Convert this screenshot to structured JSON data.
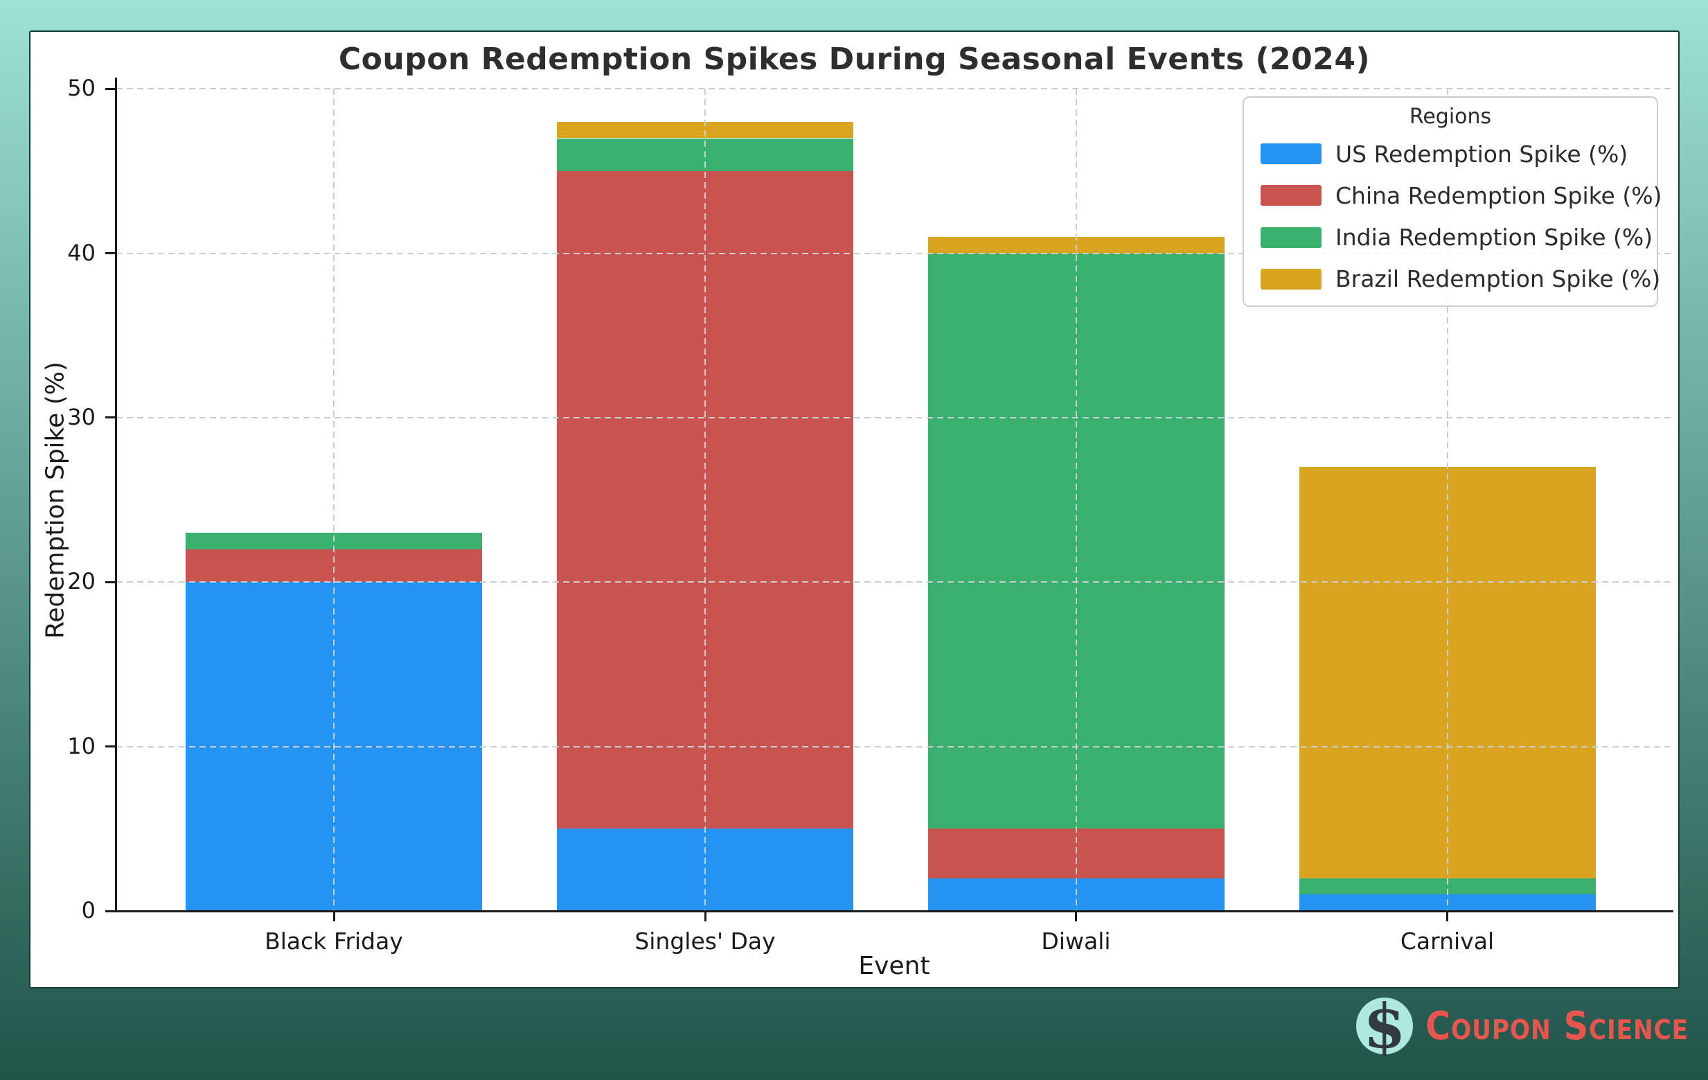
{
  "page": {
    "gradient_top": "#9de2d4",
    "gradient_bottom": "#1f5449"
  },
  "chart_data": {
    "type": "bar",
    "stacked": true,
    "title": "Coupon Redemption Spikes During Seasonal Events (2024)",
    "xlabel": "Event",
    "ylabel": "Redemption Spike (%)",
    "categories": [
      "Black Friday",
      "Singles' Day",
      "Diwali",
      "Carnival"
    ],
    "series": [
      {
        "name": "US Redemption Spike (%)",
        "color": "#2493f2",
        "values": [
          20,
          5,
          2,
          1
        ]
      },
      {
        "name": "China Redemption Spike (%)",
        "color": "#c9534f",
        "values": [
          2,
          40,
          3,
          0
        ]
      },
      {
        "name": "India Redemption Spike (%)",
        "color": "#3ab06e",
        "values": [
          1,
          2,
          35,
          1
        ]
      },
      {
        "name": "Brazil Redemption Spike (%)",
        "color": "#d9a520",
        "values": [
          0,
          1,
          1,
          25
        ]
      }
    ],
    "ylim": [
      0,
      50
    ],
    "yticks": [
      0,
      10,
      20,
      30,
      40,
      50
    ],
    "grid": "dashed-both-axes",
    "legend": {
      "title": "Regions",
      "position": "upper right"
    }
  },
  "branding": {
    "logo_icon": "dollar-sign-icon",
    "dollar_symbol": "$",
    "logo_text": "Coupon Science",
    "text_color": "#e9544c",
    "circle_color": "#ade9dd"
  }
}
